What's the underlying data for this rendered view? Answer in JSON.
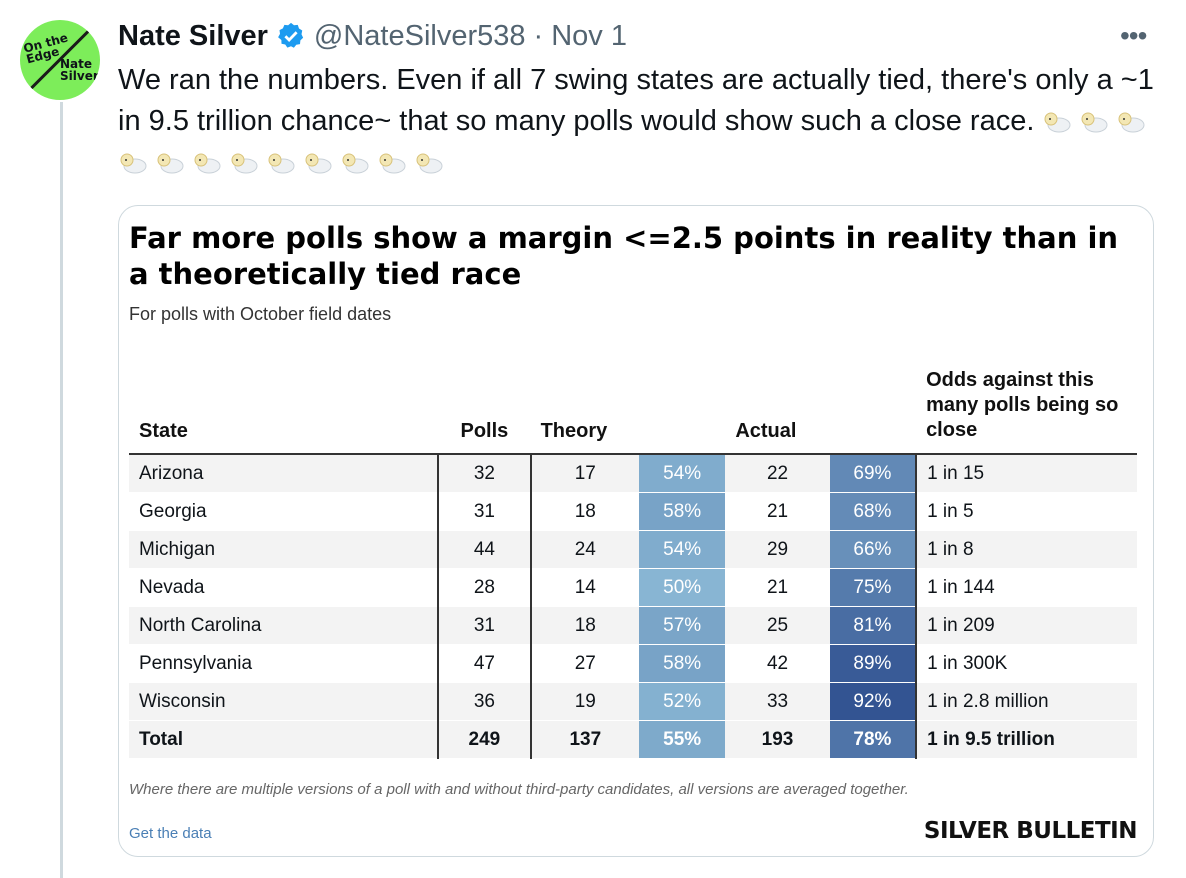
{
  "tweet": {
    "author_name": "Nate Silver",
    "handle": "@NateSilver538",
    "separator": "·",
    "date": "Nov 1",
    "more_label": "•••",
    "avatar_text": {
      "line1": "On the Edge",
      "line2": "Nate Silver"
    },
    "text": "We ran the numbers. Even if all 7 swing states are actually tied, there's only a ~1 in 9.5 trillion chance~ that so many polls would show such a close race.",
    "emoji_icon": "sheep-icon",
    "emoji_count": 12
  },
  "card": {
    "title": "Far more polls show a margin <=2.5 points in reality than in a theoretically tied race",
    "subtitle": "For polls with October field dates",
    "columns": {
      "state": "State",
      "polls": "Polls",
      "theory": "Theory",
      "actual": "Actual",
      "odds": "Odds against this many polls being so close"
    },
    "rows": [
      {
        "state": "Arizona",
        "polls": "32",
        "theory": "17",
        "theory_pct": "54%",
        "actual": "22",
        "actual_pct": "69%",
        "odds": "1 in 15"
      },
      {
        "state": "Georgia",
        "polls": "31",
        "theory": "18",
        "theory_pct": "58%",
        "actual": "21",
        "actual_pct": "68%",
        "odds": "1 in 5"
      },
      {
        "state": "Michigan",
        "polls": "44",
        "theory": "24",
        "theory_pct": "54%",
        "actual": "29",
        "actual_pct": "66%",
        "odds": "1 in 8"
      },
      {
        "state": "Nevada",
        "polls": "28",
        "theory": "14",
        "theory_pct": "50%",
        "actual": "21",
        "actual_pct": "75%",
        "odds": "1 in 144"
      },
      {
        "state": "North Carolina",
        "polls": "31",
        "theory": "18",
        "theory_pct": "57%",
        "actual": "25",
        "actual_pct": "81%",
        "odds": "1 in 209"
      },
      {
        "state": "Pennsylvania",
        "polls": "47",
        "theory": "27",
        "theory_pct": "58%",
        "actual": "42",
        "actual_pct": "89%",
        "odds": "1 in 300K"
      },
      {
        "state": "Wisconsin",
        "polls": "36",
        "theory": "19",
        "theory_pct": "52%",
        "actual": "33",
        "actual_pct": "92%",
        "odds": "1 in 2.8 million"
      }
    ],
    "total": {
      "state": "Total",
      "polls": "249",
      "theory": "137",
      "theory_pct": "55%",
      "actual": "193",
      "actual_pct": "78%",
      "odds": "1 in 9.5 trillion"
    },
    "footnote": "Where there are multiple versions of a poll with and without third-party candidates, all versions are averaged together.",
    "get_data": "Get the data",
    "brand": "SILVER BULLETIN"
  },
  "colors": {
    "avatar_bg": "#7ded5a",
    "verified": "#1d9bf0",
    "heat_low": "#8fbcd6",
    "heat_high": "#2f4f8f"
  }
}
